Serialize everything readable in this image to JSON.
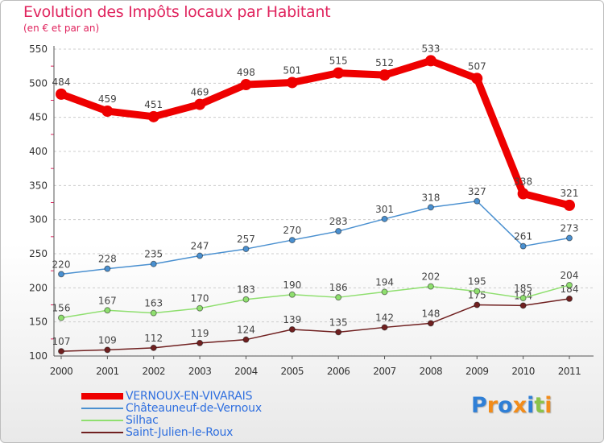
{
  "header": {
    "title": "Evolution des Impôts locaux par Habitant",
    "subtitle": "(en € et par an)"
  },
  "colors": {
    "title": "#e0245e",
    "legend_text": "#2f6fdf",
    "axis_text": "#333333",
    "label_text": "#444444",
    "grid": "#cccccc"
  },
  "chart_data": {
    "type": "line",
    "title": "Evolution des Impôts locaux par Habitant",
    "subtitle": "(en € et par an)",
    "xlabel": "",
    "ylabel": "",
    "x": [
      "2000",
      "2001",
      "2002",
      "2003",
      "2004",
      "2005",
      "2006",
      "2007",
      "2008",
      "2009",
      "2010",
      "2011"
    ],
    "ylim": [
      100,
      550
    ],
    "yticks": [
      100,
      150,
      200,
      250,
      300,
      350,
      400,
      450,
      500,
      550
    ],
    "grid": "horizontal dashed",
    "legend_position": "bottom-left",
    "series": [
      {
        "name": "VERNOUX-EN-VIVARAIS",
        "color": "#ee0000",
        "style": "thick",
        "values": [
          484,
          459,
          451,
          469,
          498,
          501,
          515,
          512,
          533,
          507,
          338,
          321
        ]
      },
      {
        "name": "Châteauneuf-de-Vernoux",
        "color": "#4a90d0",
        "style": "thin",
        "values": [
          220,
          228,
          235,
          247,
          257,
          270,
          283,
          301,
          318,
          327,
          261,
          273
        ]
      },
      {
        "name": "Silhac",
        "color": "#8fdf6f",
        "style": "thin",
        "values": [
          156,
          167,
          163,
          170,
          183,
          190,
          186,
          194,
          202,
          195,
          185,
          204
        ]
      },
      {
        "name": "Saint-Julien-le-Roux",
        "color": "#702020",
        "style": "thin",
        "values": [
          107,
          109,
          112,
          119,
          124,
          139,
          135,
          142,
          148,
          175,
          174,
          184
        ]
      }
    ]
  },
  "logo": {
    "text": "Proxiti",
    "letters": [
      "P",
      "r",
      "o",
      "x",
      "i",
      "t",
      "i"
    ],
    "colors": [
      "#2f7fd6",
      "#f28c1a",
      "#2f7fd6",
      "#f28c1a",
      "#2f7fd6",
      "#8bc34a",
      "#f28c1a"
    ]
  }
}
